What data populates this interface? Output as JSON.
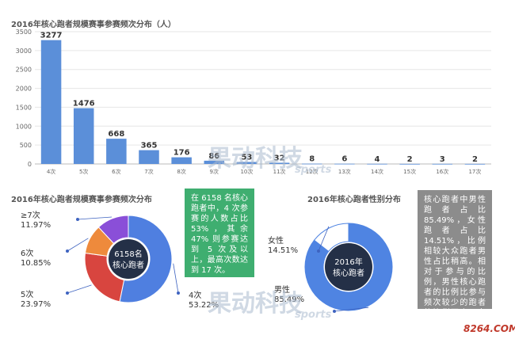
{
  "chart_data": [
    {
      "type": "bar",
      "title": "2016年核心跑者规模赛事参赛频次分布（人）",
      "categories": [
        "4次",
        "5次",
        "6次",
        "7次",
        "8次",
        "9次",
        "10次",
        "11次",
        "12次",
        "13次",
        "14次",
        "15次",
        "16次",
        "17次"
      ],
      "values": [
        3277,
        1476,
        668,
        365,
        176,
        86,
        53,
        32,
        8,
        6,
        4,
        2,
        3,
        2
      ],
      "ylim": [
        0,
        3500
      ],
      "yticks": [
        0,
        500,
        1000,
        1500,
        2000,
        2500,
        3000,
        3500
      ],
      "grid": true,
      "color": "#5b8fd9"
    },
    {
      "type": "pie",
      "title": "2016年核心跑者规模赛事参赛频次分布",
      "center_label": [
        "6158名",
        "核心跑者"
      ],
      "slices": [
        {
          "label": "4次",
          "value": 53.22,
          "pct_text": "53.22%",
          "color": "#4f7fe0"
        },
        {
          "label": "5次",
          "value": 23.97,
          "pct_text": "23.97%",
          "color": "#d8453f"
        },
        {
          "label": "6次",
          "value": 10.85,
          "pct_text": "10.85%",
          "color": "#ee8a3c"
        },
        {
          "label": "≥7次",
          "value": 11.97,
          "pct_text": "11.97%",
          "color": "#8a4fd8"
        }
      ],
      "note": "在 6158 名核心跑者中，4 次参赛的人数占比 53%，其余 47% 则参赛达到 5 次及以上，最高次数达到 17 次。",
      "note_color": "#3fae70"
    },
    {
      "type": "pie",
      "title": "2016年核心跑者性别分布",
      "center_label": [
        "2016年",
        "核心跑者"
      ],
      "slices": [
        {
          "label": "男性",
          "value": 85.49,
          "pct_text": "85.49%",
          "color": "#4f84e2"
        },
        {
          "label": "女性",
          "value": 14.51,
          "pct_text": "14.51%",
          "color": "#ffffff"
        }
      ],
      "note": "核心跑者中男性跑者占比85.49%，女性跑者占比 14.51%，比例相较大众跑者男性占比稍高。相对于参与的比例，男性核心跑者的比例比参与频次较少的跑者的比例更高，女性更多参与的频次较低。",
      "note_color": "#8c8c8c"
    }
  ],
  "watermark": {
    "text": "果动科技",
    "sub": "sports",
    "site": "8264.COM"
  }
}
